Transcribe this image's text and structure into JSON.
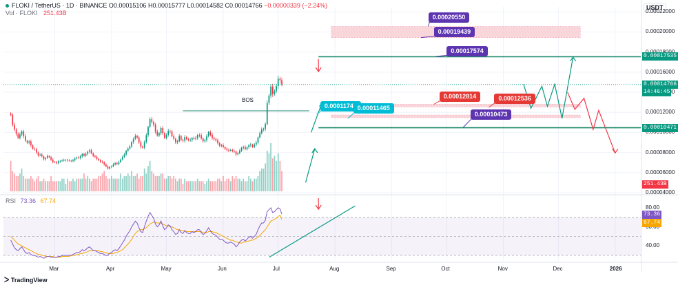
{
  "header": {
    "symbol": "FLOKI / TetherUS · 1D · BINANCE",
    "ohlc": "O0.00015106 H0.00015777 L0.00014582 C0.00014766",
    "change": "−0.00000339 (−2.24%)",
    "vol_label": "Vol · FLOKI",
    "vol_value": "251.43B"
  },
  "currency": "USDT",
  "colors": {
    "up": "#089981",
    "down": "#f23645",
    "accent": "#673ab7",
    "teal": "#00bcd4",
    "zone": "#f7c5c9"
  },
  "price_axis": {
    "ticks": [
      "0.00022000",
      "0.00020000",
      "0.00018000",
      "0.00016000",
      "0.00014000",
      "0.00012000",
      "0.00010000",
      "0.00008000",
      "0.00006000",
      "0.00004000"
    ],
    "badges": [
      {
        "name": "level-upper",
        "text": "0.00017535",
        "color": "#089981"
      },
      {
        "name": "current-price",
        "text": "0.00014766",
        "color": "#089981"
      },
      {
        "name": "countdown",
        "text": "14:46:45",
        "color": "#089981"
      },
      {
        "name": "level-lower",
        "text": "0.00010471",
        "color": "#089981"
      },
      {
        "name": "volume",
        "text": "251.43B",
        "color": "#f23645"
      }
    ]
  },
  "rsi": {
    "label": "RSI",
    "value": "73.36",
    "ma": "67.74",
    "ticks": [
      "80.00",
      "60.00",
      "40.00"
    ]
  },
  "time_axis": [
    "Mar",
    "Apr",
    "May",
    "Jun",
    "Jul",
    "Aug",
    "Sep",
    "Oct",
    "Nov",
    "Dec",
    "2026"
  ],
  "callouts": [
    {
      "name": "callout-20550",
      "text": "0.00020550",
      "color": "#5e35b1"
    },
    {
      "name": "callout-19439",
      "text": "0.00019439",
      "color": "#5e35b1"
    },
    {
      "name": "callout-17574",
      "text": "0.00017574",
      "color": "#5e35b1"
    },
    {
      "name": "callout-11742",
      "text": "0.00011742",
      "color": "#00bcd4"
    },
    {
      "name": "callout-11465",
      "text": "0.00011465",
      "color": "#00bcd4"
    },
    {
      "name": "callout-12814",
      "text": "0.00012814",
      "color": "#e53935"
    },
    {
      "name": "callout-12536",
      "text": "0.00012536",
      "color": "#e53935"
    },
    {
      "name": "callout-10473",
      "text": "0.00010473",
      "color": "#5e35b1"
    }
  ],
  "annotations": {
    "bos": "BOS"
  },
  "branding": "TradingView",
  "chart_data": {
    "type": "candlestick",
    "x_range": [
      "2025-02-01",
      "2026-01-15"
    ],
    "price_ylim": [
      4e-05,
      0.000225
    ],
    "rsi_ylim": [
      25,
      85
    ],
    "rsi_bands": [
      30,
      70
    ],
    "closes": [
      0.0001175,
      0.0001075,
      0.0001031,
      9.85e-05,
      9.45e-05,
      9.8e-05,
      0.000101,
      9.62e-05,
      9.17e-05,
      8.98e-05,
      9.11e-05,
      8.72e-05,
      8.38e-05,
      8.32e-05,
      8.01e-05,
      7.72e-05,
      7.8e-05,
      7.62e-05,
      7.34e-05,
      7.45e-05,
      7.65e-05,
      7.54e-05,
      7.29e-05,
      7.07e-05,
      7.05e-05,
      6.93e-05,
      7.13e-05,
      7.16e-05,
      7.21e-05,
      7.25e-05,
      7.27e-05,
      7.21e-05,
      7.18e-05,
      7.16e-05,
      7.25e-05,
      7.4e-05,
      7.51e-05,
      7.45e-05,
      7.62e-05,
      7.85e-05,
      7.68e-05,
      7.86e-05,
      8.09e-05,
      8.23e-05,
      7.92e-05,
      7.66e-05,
      7.58e-05,
      7.38e-05,
      7.23e-05,
      7.07e-05,
      7.05e-05,
      6.83e-05,
      6.61e-05,
      6.41e-05,
      6.58e-05,
      6.62e-05,
      6.81e-05,
      6.96e-05,
      6.86e-05,
      7.04e-05,
      7.31e-05,
      7.57e-05,
      7.81e-05,
      8.17e-05,
      8.39e-05,
      8.61e-05,
      9.06e-05,
      9.36e-05,
      9.65e-05,
      9.51e-05,
      9.03e-05,
      8.59e-05,
      8.48e-05,
      9.06e-05,
      9.73e-05,
      0.0001054,
      0.0001132,
      0.0001104,
      0.0001077,
      0.0001008,
      9.7e-05,
      9.92e-05,
      0.0001044,
      9.94e-05,
      9.45e-05,
      9.76e-05,
      0.0001016,
      0.000101,
      9.61e-05,
      9.37e-05,
      9.03e-05,
      9.12e-05,
      9.64e-05,
      9.26e-05,
      9.17e-05,
      9.54e-05,
      9.32e-05,
      9.24e-05,
      9.26e-05,
      9.44e-05,
      9.36e-05,
      9.43e-05,
      9.75e-05,
      9.73e-05,
      9.4e-05,
      9.12e-05,
      9.25e-05,
      9.63e-05,
      0.0001004,
      9.75e-05,
      9.46e-05,
      9.34e-05,
      9.2e-05,
      8.93e-05,
      8.7e-05,
      8.73e-05,
      8.54e-05,
      8.38e-05,
      8.25e-05,
      8.21e-05,
      8.26e-05,
      8.14e-05,
      8.11e-05,
      7.81e-05,
      7.94e-05,
      8.2e-05,
      8.47e-05,
      8.55e-05,
      8.33e-05,
      8.52e-05,
      8.73e-05,
      8.78e-05,
      8.56e-05,
      8.79e-05,
      8.98e-05,
      9.5e-05,
      9.94e-05,
      0.0001029,
      0.0001035,
      0.0001084,
      0.0001293,
      0.0001368,
      0.0001456,
      0.0001383,
      0.0001412,
      0.0001462,
      0.0001535,
      0.000152,
      0.0001477
    ],
    "volumes": [
      1.2,
      0.8,
      0.7,
      0.6,
      0.6,
      0.7,
      0.9,
      0.6,
      0.5,
      0.5,
      0.5,
      0.6,
      0.5,
      0.4,
      0.5,
      0.6,
      0.4,
      0.4,
      0.5,
      0.4,
      0.4,
      0.4,
      0.6,
      0.4,
      0.4,
      0.4,
      0.4,
      0.4,
      0.5,
      0.5,
      0.3,
      0.5,
      0.4,
      0.4,
      0.5,
      0.4,
      0.5,
      0.5,
      0.5,
      0.5,
      0.7,
      0.5,
      0.6,
      0.5,
      0.4,
      0.5,
      0.5,
      0.5,
      0.6,
      0.6,
      0.7,
      0.8,
      0.6,
      0.5,
      0.5,
      0.6,
      0.5,
      0.5,
      0.5,
      0.5,
      0.7,
      0.5,
      0.6,
      0.6,
      0.7,
      0.6,
      0.8,
      0.6,
      0.6,
      0.7,
      0.5,
      0.6,
      0.6,
      0.9,
      0.7,
      1.0,
      1.2,
      0.8,
      0.7,
      0.6,
      0.6,
      0.6,
      0.7,
      0.7,
      0.5,
      0.5,
      0.6,
      0.6,
      0.5,
      0.6,
      0.5,
      0.4,
      0.5,
      0.5,
      0.3,
      0.5,
      0.4,
      0.4,
      0.4,
      0.4,
      0.4,
      0.4,
      0.5,
      0.4,
      0.4,
      0.4,
      0.3,
      0.4,
      0.5,
      0.4,
      0.4,
      0.4,
      0.4,
      0.5,
      0.5,
      0.4,
      0.6,
      0.4,
      0.5,
      0.5,
      0.4,
      0.6,
      0.5,
      0.6,
      0.5,
      0.5,
      0.4,
      0.5,
      0.4,
      0.4,
      0.6,
      0.5,
      0.4,
      0.5,
      0.5,
      0.6,
      0.8,
      0.9,
      0.9,
      1.1,
      1.6,
      1.5,
      1.9,
      1.3,
      1.4,
      1.2,
      1.5,
      1.2,
      0.8
    ],
    "rsi_values": [
      46,
      42,
      38,
      36,
      35,
      37,
      39,
      36,
      33,
      32,
      33,
      31,
      30,
      30,
      29,
      28,
      29,
      28,
      27,
      28,
      29,
      29,
      28,
      28,
      28,
      28,
      29,
      29,
      30,
      30,
      30,
      30,
      30,
      30,
      31,
      32,
      33,
      33,
      34,
      36,
      35,
      36,
      38,
      39,
      37,
      35,
      35,
      34,
      33,
      32,
      32,
      31,
      30,
      30,
      32,
      33,
      35,
      36,
      35,
      37,
      40,
      43,
      46,
      50,
      53,
      56,
      60,
      63,
      66,
      64,
      59,
      55,
      54,
      60,
      66,
      71,
      75,
      72,
      69,
      63,
      60,
      62,
      66,
      61,
      57,
      59,
      62,
      61,
      57,
      55,
      52,
      53,
      57,
      54,
      53,
      56,
      54,
      53,
      53,
      55,
      54,
      55,
      57,
      57,
      54,
      52,
      53,
      56,
      59,
      56,
      53,
      52,
      51,
      49,
      47,
      47,
      46,
      44,
      43,
      43,
      44,
      43,
      42,
      39,
      41,
      44,
      46,
      47,
      45,
      47,
      49,
      50,
      48,
      50,
      52,
      57,
      61,
      64,
      64,
      67,
      76,
      78,
      80,
      75,
      76,
      78,
      80,
      79,
      73.36
    ],
    "rsi_ma_values": [
      50,
      48,
      46,
      44,
      42,
      41,
      40,
      39,
      38,
      37,
      36,
      35,
      34,
      33,
      32,
      31,
      31,
      30,
      30,
      29,
      29,
      29,
      29,
      29,
      28,
      28,
      28,
      28,
      29,
      29,
      29,
      29,
      29,
      30,
      30,
      30,
      31,
      31,
      32,
      32,
      33,
      33,
      34,
      35,
      35,
      35,
      35,
      35,
      35,
      34,
      34,
      33,
      33,
      32,
      32,
      32,
      32,
      33,
      33,
      34,
      35,
      36,
      38,
      40,
      42,
      44,
      47,
      50,
      53,
      55,
      56,
      57,
      57,
      58,
      59,
      61,
      63,
      64,
      65,
      65,
      64,
      64,
      64,
      63,
      62,
      61,
      61,
      60,
      60,
      59,
      58,
      57,
      57,
      56,
      56,
      56,
      55,
      55,
      55,
      55,
      55,
      55,
      55,
      55,
      55,
      54,
      54,
      54,
      55,
      55,
      55,
      54,
      54,
      53,
      52,
      51,
      50,
      49,
      48,
      47,
      46,
      46,
      45,
      44,
      44,
      43,
      43,
      44,
      44,
      45,
      45,
      46,
      46,
      47,
      48,
      49,
      51,
      53,
      55,
      57,
      60,
      63,
      66,
      67,
      68,
      69,
      71,
      72,
      67.74
    ],
    "levels": [
      {
        "name": "resistance-target",
        "value": 0.00017535
      },
      {
        "name": "support",
        "value": 0.00010471
      }
    ],
    "zones": [
      {
        "name": "upper-zone",
        "low": 0.00019439,
        "high": 0.0002055
      },
      {
        "name": "middle-zone",
        "low": 0.00012536,
        "high": 0.00012814
      },
      {
        "name": "lower-zone",
        "low": 0.00011465,
        "high": 0.00011742
      }
    ]
  }
}
